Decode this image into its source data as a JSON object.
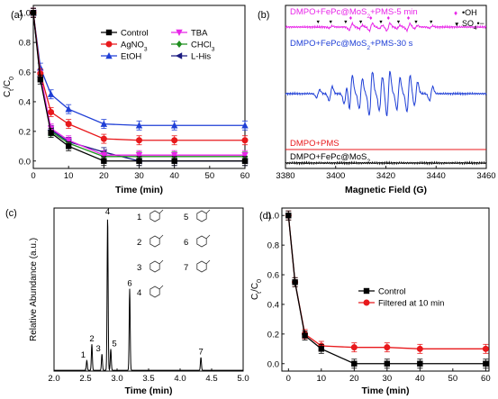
{
  "panels": {
    "a": {
      "label": "(a)"
    },
    "b": {
      "label": "(b)"
    },
    "c": {
      "label": "(c)"
    },
    "d": {
      "label": "(d)"
    }
  },
  "chart_data": [
    {
      "id": "a",
      "type": "line",
      "xlabel": "Time (min)",
      "ylabel": "Ct/C0",
      "xlim": [
        0,
        60
      ],
      "ylim": [
        -0.05,
        1.05
      ],
      "xticks": [
        0,
        10,
        20,
        30,
        40,
        50,
        60
      ],
      "yticks": [
        0.0,
        0.2,
        0.4,
        0.6,
        0.8,
        1.0
      ],
      "legend_placement": "right",
      "x": [
        0,
        2,
        5,
        10,
        20,
        30,
        40,
        60
      ],
      "series": [
        {
          "name": "Control",
          "color": "#000000",
          "marker": "square",
          "values": [
            1.0,
            0.55,
            0.19,
            0.1,
            0.0,
            0.0,
            0.0,
            0.0
          ]
        },
        {
          "name": "AgNO3",
          "color": "#e8191c",
          "marker": "circle",
          "values": [
            1.0,
            0.59,
            0.33,
            0.25,
            0.15,
            0.14,
            0.14,
            0.14
          ]
        },
        {
          "name": "EtOH",
          "color": "#1f3fd6",
          "marker": "triangle-up",
          "values": [
            1.0,
            0.63,
            0.45,
            0.35,
            0.25,
            0.24,
            0.24,
            0.24
          ]
        },
        {
          "name": "TBA",
          "color": "#e826e8",
          "marker": "triangle-down",
          "values": [
            1.0,
            0.58,
            0.22,
            0.14,
            0.04,
            0.04,
            0.04,
            0.04
          ]
        },
        {
          "name": "CHCl3",
          "color": "#1f8f1f",
          "marker": "diamond",
          "values": [
            1.0,
            0.58,
            0.2,
            0.12,
            0.03,
            0.03,
            0.03,
            0.03
          ]
        },
        {
          "name": "L-His",
          "color": "#1a1a80",
          "marker": "triangle-left",
          "values": [
            1.0,
            0.57,
            0.21,
            0.13,
            0.06,
            0.0,
            0.0,
            0.0
          ]
        }
      ]
    },
    {
      "id": "b",
      "type": "line",
      "xlabel": "Magnetic Field (G)",
      "xlim": [
        3380,
        3460
      ],
      "xticks": [
        3380,
        3400,
        3420,
        3440,
        3460
      ],
      "series": [
        {
          "name": "DMPO+FePc@MoS2+PMS-5 min",
          "color": "#e826e8",
          "marker": "triangle-down"
        },
        {
          "name": "DMPO+FePc@MoS2+PMS-30 s",
          "color": "#1f3fd6",
          "marker": "triangle-up"
        },
        {
          "name": "DMPO+PMS",
          "color": "#e8191c"
        },
        {
          "name": "DMPO+FePc@MoS2",
          "color": "#000000"
        }
      ],
      "peak_legend": [
        {
          "symbol": "♦",
          "text": "•OH",
          "color": "#e826e8"
        },
        {
          "symbol": "▼",
          "text": "SO4•−",
          "color": "#000000"
        }
      ],
      "oh_peaks": [
        3406,
        3414,
        3421,
        3429
      ],
      "so4_peaks": [
        3393,
        3398,
        3404,
        3410,
        3418,
        3425,
        3432,
        3438
      ],
      "label_parts": {
        "fepc5": [
          "DMPO+FePc@MoS",
          "2",
          "+PMS-5 min"
        ],
        "fepc30": [
          "DMPO+FePc@MoS",
          "2",
          "+PMS-30 s"
        ],
        "pms": [
          "DMPO+PMS"
        ],
        "fepc": [
          "DMPO+FePc@MoS",
          "2"
        ]
      }
    },
    {
      "id": "c",
      "type": "line",
      "xlabel": "Time (min)",
      "ylabel": "Relative Abundance (a.u.)",
      "xlim": [
        2.0,
        5.0
      ],
      "xticks": [
        2.0,
        2.5,
        3.0,
        3.5,
        4.0,
        4.5,
        5.0
      ],
      "peaks": [
        {
          "label": "1",
          "time": 2.52,
          "height": 0.06
        },
        {
          "label": "2",
          "time": 2.6,
          "height": 0.16
        },
        {
          "label": "3",
          "time": 2.76,
          "height": 0.1
        },
        {
          "label": "4",
          "time": 2.85,
          "height": 0.94
        },
        {
          "label": "5",
          "time": 2.9,
          "height": 0.13
        },
        {
          "label": "6",
          "time": 3.2,
          "height": 0.5
        },
        {
          "label": "7",
          "time": 4.33,
          "height": 0.08
        }
      ],
      "structure_labels": [
        "1",
        "2",
        "3",
        "4",
        "5",
        "6",
        "7"
      ]
    },
    {
      "id": "d",
      "type": "line",
      "xlabel": "Time (min)",
      "ylabel": "Ct/C0",
      "xlim": [
        -2,
        61
      ],
      "ylim": [
        -0.05,
        1.05
      ],
      "xticks": [
        0,
        10,
        20,
        30,
        40,
        50,
        60
      ],
      "yticks": [
        0.0,
        0.2,
        0.4,
        0.6,
        0.8,
        1.0
      ],
      "legend_placement": "right",
      "x": [
        0,
        2,
        5,
        10,
        20,
        30,
        40,
        60
      ],
      "series": [
        {
          "name": "Control",
          "color": "#000000",
          "marker": "square",
          "values": [
            1.0,
            0.55,
            0.19,
            0.1,
            0.0,
            0.0,
            0.0,
            0.0
          ]
        },
        {
          "name": "Filtered at 10 min",
          "color": "#e8191c",
          "marker": "circle",
          "values": [
            1.0,
            0.55,
            0.2,
            0.12,
            0.11,
            0.11,
            0.1,
            0.1
          ]
        }
      ]
    }
  ]
}
